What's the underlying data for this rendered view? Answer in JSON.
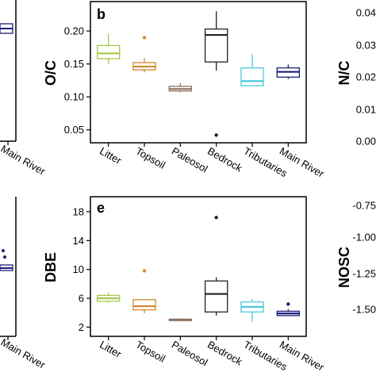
{
  "chart_data": [
    {
      "panel": "b",
      "type": "box",
      "ylabel": "O/C",
      "ylim": [
        0.04,
        0.235
      ],
      "yticks": [
        "0.05",
        "0.10",
        "0.15",
        "0.20"
      ],
      "yticks_values": [
        0.05,
        0.1,
        0.15,
        0.2
      ],
      "categories": [
        "Litter",
        "Topsoil",
        "Paleosol",
        "Bedrock",
        "Tributaries",
        "Main River"
      ],
      "colors": [
        "#a6c94a",
        "#d08a2e",
        "#8a7060",
        "#222222",
        "#4fc8dc",
        "#1c1c7a"
      ],
      "boxes": [
        {
          "whisker_low": 0.15,
          "q1": 0.158,
          "median": 0.166,
          "q3": 0.178,
          "whisker_high": 0.196,
          "outliers": []
        },
        {
          "whisker_low": 0.137,
          "q1": 0.141,
          "median": 0.146,
          "q3": 0.152,
          "whisker_high": 0.159,
          "outliers": [
            0.19
          ]
        },
        {
          "whisker_low": 0.107,
          "q1": 0.109,
          "median": 0.112,
          "q3": 0.116,
          "whisker_high": 0.121,
          "outliers": []
        },
        {
          "whisker_low": 0.14,
          "q1": 0.153,
          "median": 0.194,
          "q3": 0.203,
          "whisker_high": 0.23,
          "outliers": [
            0.042
          ]
        },
        {
          "whisker_low": 0.117,
          "q1": 0.117,
          "median": 0.124,
          "q3": 0.144,
          "whisker_high": 0.165,
          "outliers": []
        },
        {
          "whisker_low": 0.127,
          "q1": 0.13,
          "median": 0.138,
          "q3": 0.144,
          "whisker_high": 0.149,
          "outliers": []
        }
      ]
    },
    {
      "panel": "e",
      "type": "box",
      "ylabel": "DBE",
      "ylim": [
        1.6,
        19.2
      ],
      "yticks": [
        "2",
        "6",
        "10",
        "14",
        "18"
      ],
      "yticks_values": [
        2,
        6,
        10,
        14,
        18
      ],
      "categories": [
        "Litter",
        "Topsoil",
        "Paleosol",
        "Bedrock",
        "Tributaries",
        "Main River"
      ],
      "colors": [
        "#a6c94a",
        "#d08a2e",
        "#8a7060",
        "#222222",
        "#4fc8dc",
        "#1c1c7a"
      ],
      "boxes": [
        {
          "whisker_low": 5.4,
          "q1": 5.6,
          "median": 6.0,
          "q3": 6.4,
          "whisker_high": 6.8,
          "outliers": []
        },
        {
          "whisker_low": 3.9,
          "q1": 4.4,
          "median": 4.9,
          "q3": 5.8,
          "whisker_high": 5.9,
          "outliers": [
            9.8
          ]
        },
        {
          "whisker_low": 2.8,
          "q1": 2.9,
          "median": 3.0,
          "q3": 3.1,
          "whisker_high": 3.2,
          "outliers": []
        },
        {
          "whisker_low": 3.6,
          "q1": 4.1,
          "median": 6.6,
          "q3": 8.4,
          "whisker_high": 8.9,
          "outliers": [
            17.2
          ]
        },
        {
          "whisker_low": 2.7,
          "q1": 4.1,
          "median": 4.8,
          "q3": 5.5,
          "whisker_high": 5.9,
          "outliers": []
        },
        {
          "whisker_low": 3.5,
          "q1": 3.6,
          "median": 3.9,
          "q3": 4.2,
          "whisker_high": 4.5,
          "outliers": [
            5.2
          ]
        }
      ]
    },
    {
      "panel": "a-partial",
      "type": "box",
      "categories": [
        "Main River"
      ],
      "colors": [
        "#1c1c7a"
      ],
      "boxes": [
        {
          "whisker_low": null,
          "q1": null,
          "median": null,
          "q3": null,
          "whisker_high": null,
          "outliers": []
        }
      ],
      "category_label": "Main River"
    },
    {
      "panel": "c-partial",
      "type": "box",
      "ylabel": "N/C",
      "yticks": [
        "0.04",
        "0.03",
        "0.02",
        "0.01",
        "0.00"
      ],
      "yticks_values": [
        0.04,
        0.03,
        0.02,
        0.01,
        0.0
      ]
    },
    {
      "panel": "d-partial",
      "type": "box",
      "categories": [
        "Main River"
      ],
      "colors": [
        "#1c1c7a"
      ],
      "category_label": "Main River"
    },
    {
      "panel": "f-partial",
      "type": "box",
      "ylabel": "NOSC",
      "yticks": [
        "-0.75",
        "-1.00",
        "-1.25",
        "-1.50"
      ],
      "yticks_values": [
        -0.75,
        -1.0,
        -1.25,
        -1.5
      ]
    }
  ]
}
